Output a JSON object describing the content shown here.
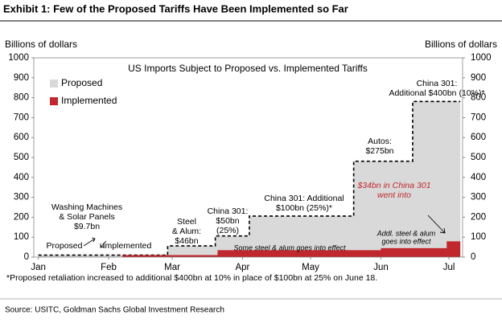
{
  "chart_data": {
    "type": "step-area",
    "title": "Exhibit 1: Few of the Proposed Tariffs Have Been Implemented so Far",
    "subtitle": "US Imports Subject to Proposed vs. Implemented Tariffs",
    "ylabel": "Billions of dollars",
    "y2label": "Billions of dollars",
    "xlim": [
      -2,
      187
    ],
    "xticks": [
      {
        "value": 0,
        "label": "Jan"
      },
      {
        "value": 31,
        "label": "Feb"
      },
      {
        "value": 59,
        "label": "Mar"
      },
      {
        "value": 90,
        "label": "Apr"
      },
      {
        "value": 120,
        "label": "May"
      },
      {
        "value": 151,
        "label": "Jun"
      },
      {
        "value": 181,
        "label": "Jul"
      }
    ],
    "ylim": [
      0,
      1000
    ],
    "yticks": [
      0,
      100,
      200,
      300,
      400,
      500,
      600,
      700,
      800,
      900,
      1000
    ],
    "y2lim": [
      0,
      1000
    ],
    "y2ticks": [
      0,
      100,
      200,
      300,
      400,
      500,
      600,
      700,
      800,
      900,
      1000
    ],
    "series": [
      {
        "name": "Proposed",
        "color": "#d9d9d9",
        "x": [
          0,
          57,
          57,
          78,
          78,
          93,
          93,
          139,
          139,
          165,
          165,
          186
        ],
        "values": [
          10,
          10,
          56,
          56,
          106,
          106,
          206,
          206,
          481,
          481,
          781,
          781
        ]
      },
      {
        "name": "Implemented",
        "color": "#c0282d",
        "x": [
          0,
          37,
          37,
          79,
          79,
          151,
          151,
          180,
          180,
          186
        ],
        "values": [
          0,
          0,
          10,
          10,
          35,
          35,
          45,
          45,
          79,
          79
        ]
      }
    ],
    "annotations": [
      "Washing Machines",
      "& Solar Panels",
      "$9.7bn",
      "Proposed",
      "Implemented",
      "Steel",
      "& Alum:",
      "$46bn",
      "China 301:",
      "$50bn",
      "(25%)",
      "China 301: Additional",
      "$100bn (25%)*",
      "Autos:",
      "$275bn",
      "China 301:",
      "Additional $400bn (10%)*",
      "$34bn in China 301",
      "went into",
      "Addl. steel & alum",
      "goes into effect",
      "Some steel & alum goes into effect"
    ],
    "footnote": "*Proposed retaliation increased to additional $400bn at 10% in place of $100bn at 25% on June 18.",
    "source": "Source: USITC, Goldman Sachs Global Investment Research"
  }
}
